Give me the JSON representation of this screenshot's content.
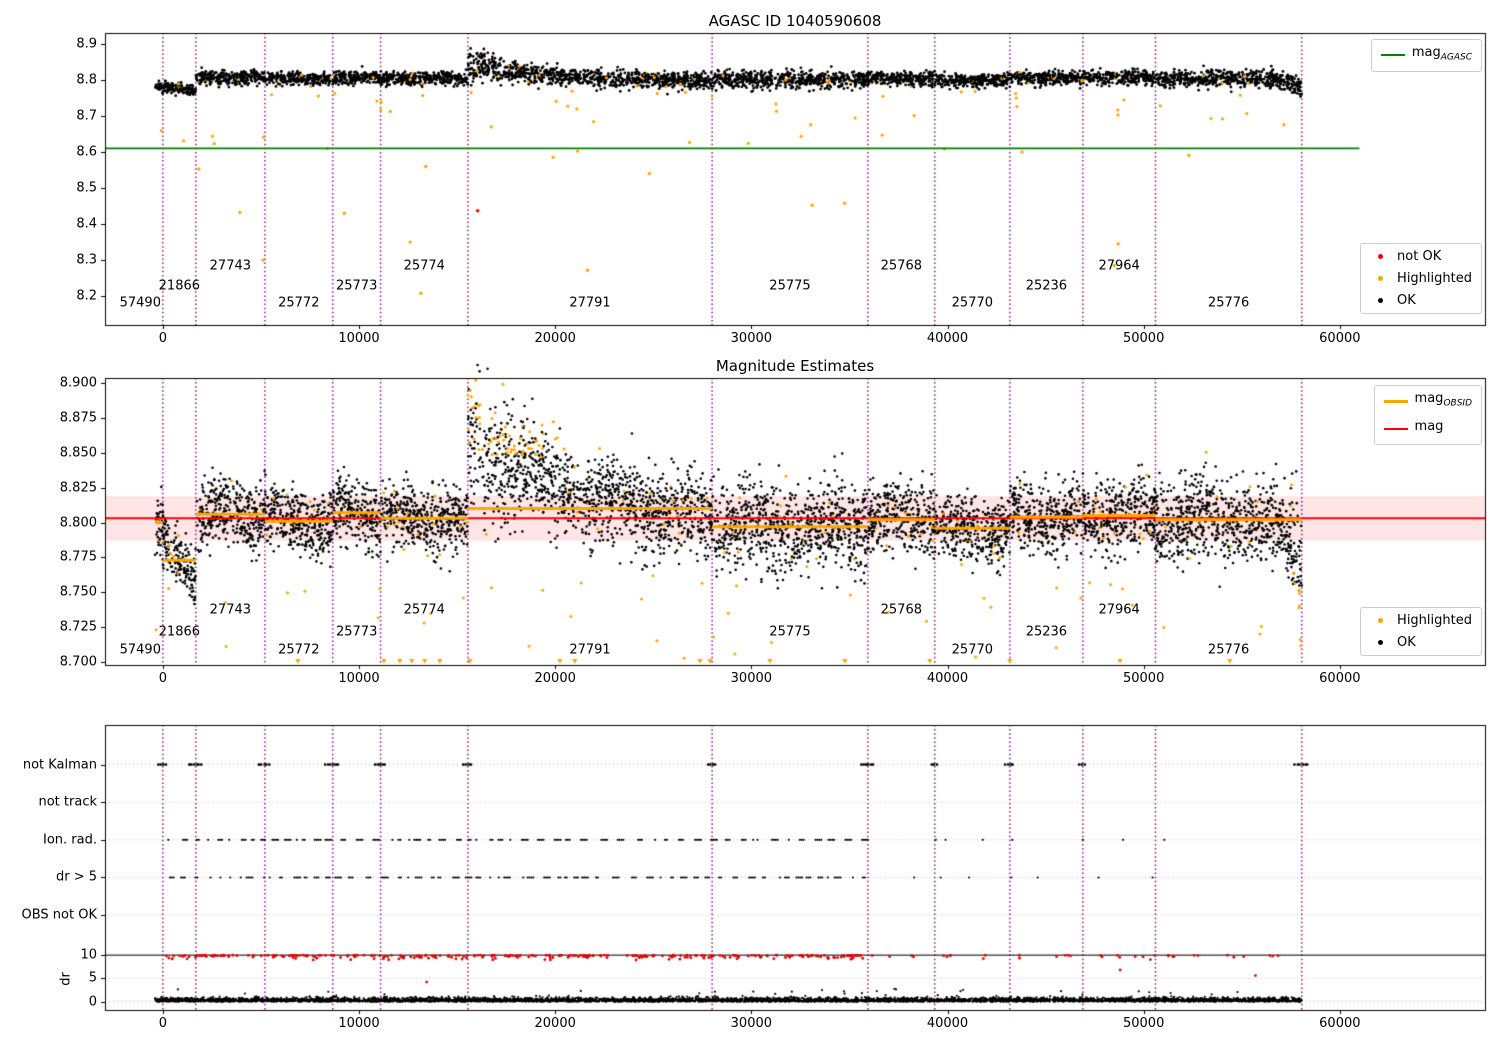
{
  "chart_data": {
    "type": "scatter",
    "description": "Three stacked time-series panels of star magnitude telemetry segmented by observation ID",
    "shared_x": {
      "xlim": [
        -2950,
        67400
      ],
      "xticks": [
        0,
        10000,
        20000,
        30000,
        40000,
        50000,
        60000
      ],
      "boundaries": [
        0,
        1680,
        5200,
        8660,
        11100,
        15550,
        28000,
        35940,
        39350,
        43180,
        46900,
        50600,
        58060
      ],
      "boundary_color": "#800080"
    },
    "observations": [
      {
        "obsid": "57490",
        "start": -400,
        "end": 0,
        "mag_obsid": 8.8,
        "top_mean": 8.78,
        "spread": 0.012,
        "label_level": 0,
        "label_x": -1150
      },
      {
        "obsid": "21866",
        "start": 0,
        "end": 1680,
        "mag_obsid": 8.773,
        "top_mean": 8.776,
        "spread": 0.01,
        "label_level": 1,
        "tilt": -0.025
      },
      {
        "obsid": "27743",
        "start": 1680,
        "end": 5200,
        "mag_obsid": 8.806,
        "top_mean": 8.806,
        "spread": 0.013,
        "label_level": 2
      },
      {
        "obsid": "25772",
        "start": 5200,
        "end": 8660,
        "mag_obsid": 8.801,
        "top_mean": 8.803,
        "spread": 0.012,
        "label_level": 0
      },
      {
        "obsid": "25773",
        "start": 8660,
        "end": 11100,
        "mag_obsid": 8.807,
        "top_mean": 8.806,
        "spread": 0.013,
        "label_level": 1
      },
      {
        "obsid": "25774",
        "start": 11100,
        "end": 15550,
        "mag_obsid": 8.803,
        "top_mean": 8.804,
        "spread": 0.012,
        "label_level": 2
      },
      {
        "obsid": "27791",
        "start": 15550,
        "end": 28000,
        "mag_obsid": 8.81,
        "top_mean": 8.8,
        "spread": 0.016,
        "label_level": 0,
        "bump_p1": 0.055,
        "bump_p2": 0.085,
        "tilt": -0.018
      },
      {
        "obsid": "25775",
        "start": 28000,
        "end": 35940,
        "mag_obsid": 8.797,
        "top_mean": 8.8,
        "spread": 0.016,
        "label_level": 1
      },
      {
        "obsid": "25768",
        "start": 35940,
        "end": 39350,
        "mag_obsid": 8.802,
        "top_mean": 8.804,
        "spread": 0.013,
        "label_level": 2
      },
      {
        "obsid": "25770",
        "start": 39350,
        "end": 43180,
        "mag_obsid": 8.796,
        "top_mean": 8.799,
        "spread": 0.012,
        "label_level": 0
      },
      {
        "obsid": "25236",
        "start": 43180,
        "end": 46900,
        "mag_obsid": 8.804,
        "top_mean": 8.805,
        "spread": 0.013,
        "label_level": 1
      },
      {
        "obsid": "27964",
        "start": 46900,
        "end": 50600,
        "mag_obsid": 8.805,
        "top_mean": 8.806,
        "spread": 0.014,
        "label_level": 2
      },
      {
        "obsid": "25776",
        "start": 50600,
        "end": 58060,
        "mag_obsid": 8.802,
        "top_mean": 8.803,
        "spread": 0.016,
        "label_level": 0
      }
    ],
    "panels": [
      {
        "title": "AGASC ID 1040590608",
        "ylim": [
          8.12,
          8.93
        ],
        "yticks": [
          8.2,
          8.3,
          8.4,
          8.5,
          8.6,
          8.7,
          8.8,
          8.9
        ],
        "mag_agasc": 8.61,
        "line_color": "#008000",
        "label_levels": [
          8.18,
          8.228,
          8.284
        ],
        "legend_line": {
          "prefix": "mag",
          "sub": "AGASC",
          "color": "#008000"
        },
        "legend_points": [
          {
            "label": "not OK",
            "color": "#ff0000"
          },
          {
            "label": "Highlighted",
            "color": "#ffa500"
          },
          {
            "label": "OK",
            "color": "#000000"
          }
        ],
        "red_points": [
          [
            16050,
            8.437
          ]
        ],
        "deep_orange_points": [
          [
            1835,
            8.553
          ],
          [
            3925,
            8.432
          ],
          [
            5100,
            8.3
          ],
          [
            9250,
            8.43
          ],
          [
            12600,
            8.35
          ],
          [
            13150,
            8.208
          ],
          [
            13400,
            8.56
          ],
          [
            19900,
            8.585
          ],
          [
            21650,
            8.272
          ],
          [
            24800,
            8.54
          ],
          [
            33100,
            8.452
          ],
          [
            34750,
            8.458
          ],
          [
            43800,
            8.6
          ],
          [
            48500,
            8.285
          ],
          [
            48700,
            8.345
          ],
          [
            52300,
            8.59
          ]
        ]
      },
      {
        "title": "Magnitude Estimates",
        "ylim": [
          8.698,
          8.9035
        ],
        "yticks": [
          8.7,
          8.725,
          8.75,
          8.775,
          8.8,
          8.825,
          8.85,
          8.875,
          8.9
        ],
        "mag": 8.803,
        "band": [
          8.787,
          8.819
        ],
        "line_colors": {
          "mag_obsid": "#ffa500",
          "mag": "#ff0000"
        },
        "band_color": "rgba(255,0,0,0.10)",
        "label_levels": [
          8.7085,
          8.7215,
          8.7375
        ],
        "legend_lines": [
          {
            "prefix": "mag",
            "sub": "OBSID",
            "color": "#ffa500"
          },
          {
            "prefix": "mag",
            "sub": "",
            "color": "#ff0000"
          }
        ],
        "legend_points": [
          {
            "label": "Highlighted",
            "color": "#ffa500"
          },
          {
            "label": "OK",
            "color": "#000000"
          }
        ],
        "clip_triangles_x": [
          6880,
          11270,
          12080,
          12690,
          13350,
          14120,
          15650,
          20240,
          21000,
          27380,
          27890,
          30950,
          34770,
          39100,
          43180,
          48790,
          54390
        ]
      },
      {
        "title": "",
        "ylim": [
          -1.8,
          59.5
        ],
        "row_labels": [
          "not Kalman",
          "not track",
          "Ion. rad.",
          "dr > 5",
          "OBS not OK"
        ],
        "row_values": [
          51.0,
          42.9,
          34.8,
          26.7,
          18.6
        ],
        "num_ticks": [
          10,
          5,
          0
        ],
        "hline": 10,
        "ylabel": "dr",
        "dense_flag_range": [
          0,
          35940
        ],
        "not_kalman_x": [
          0,
          1680,
          5200,
          8660,
          11100,
          15550,
          28000,
          35940,
          39350,
          43180,
          46900,
          58060
        ],
        "ion_rad_sparse_x": [
          39400,
          39900,
          41800,
          43300,
          46900,
          48950,
          51050
        ],
        "dr5_sparse_x": [
          38300,
          39650,
          41100,
          43250,
          44600,
          47700,
          50450
        ],
        "dr_red_low": [
          [
            13450,
            4.2
          ],
          [
            48800,
            6.8
          ],
          [
            55700,
            5.6
          ]
        ],
        "red_color": "#e00000"
      }
    ]
  }
}
